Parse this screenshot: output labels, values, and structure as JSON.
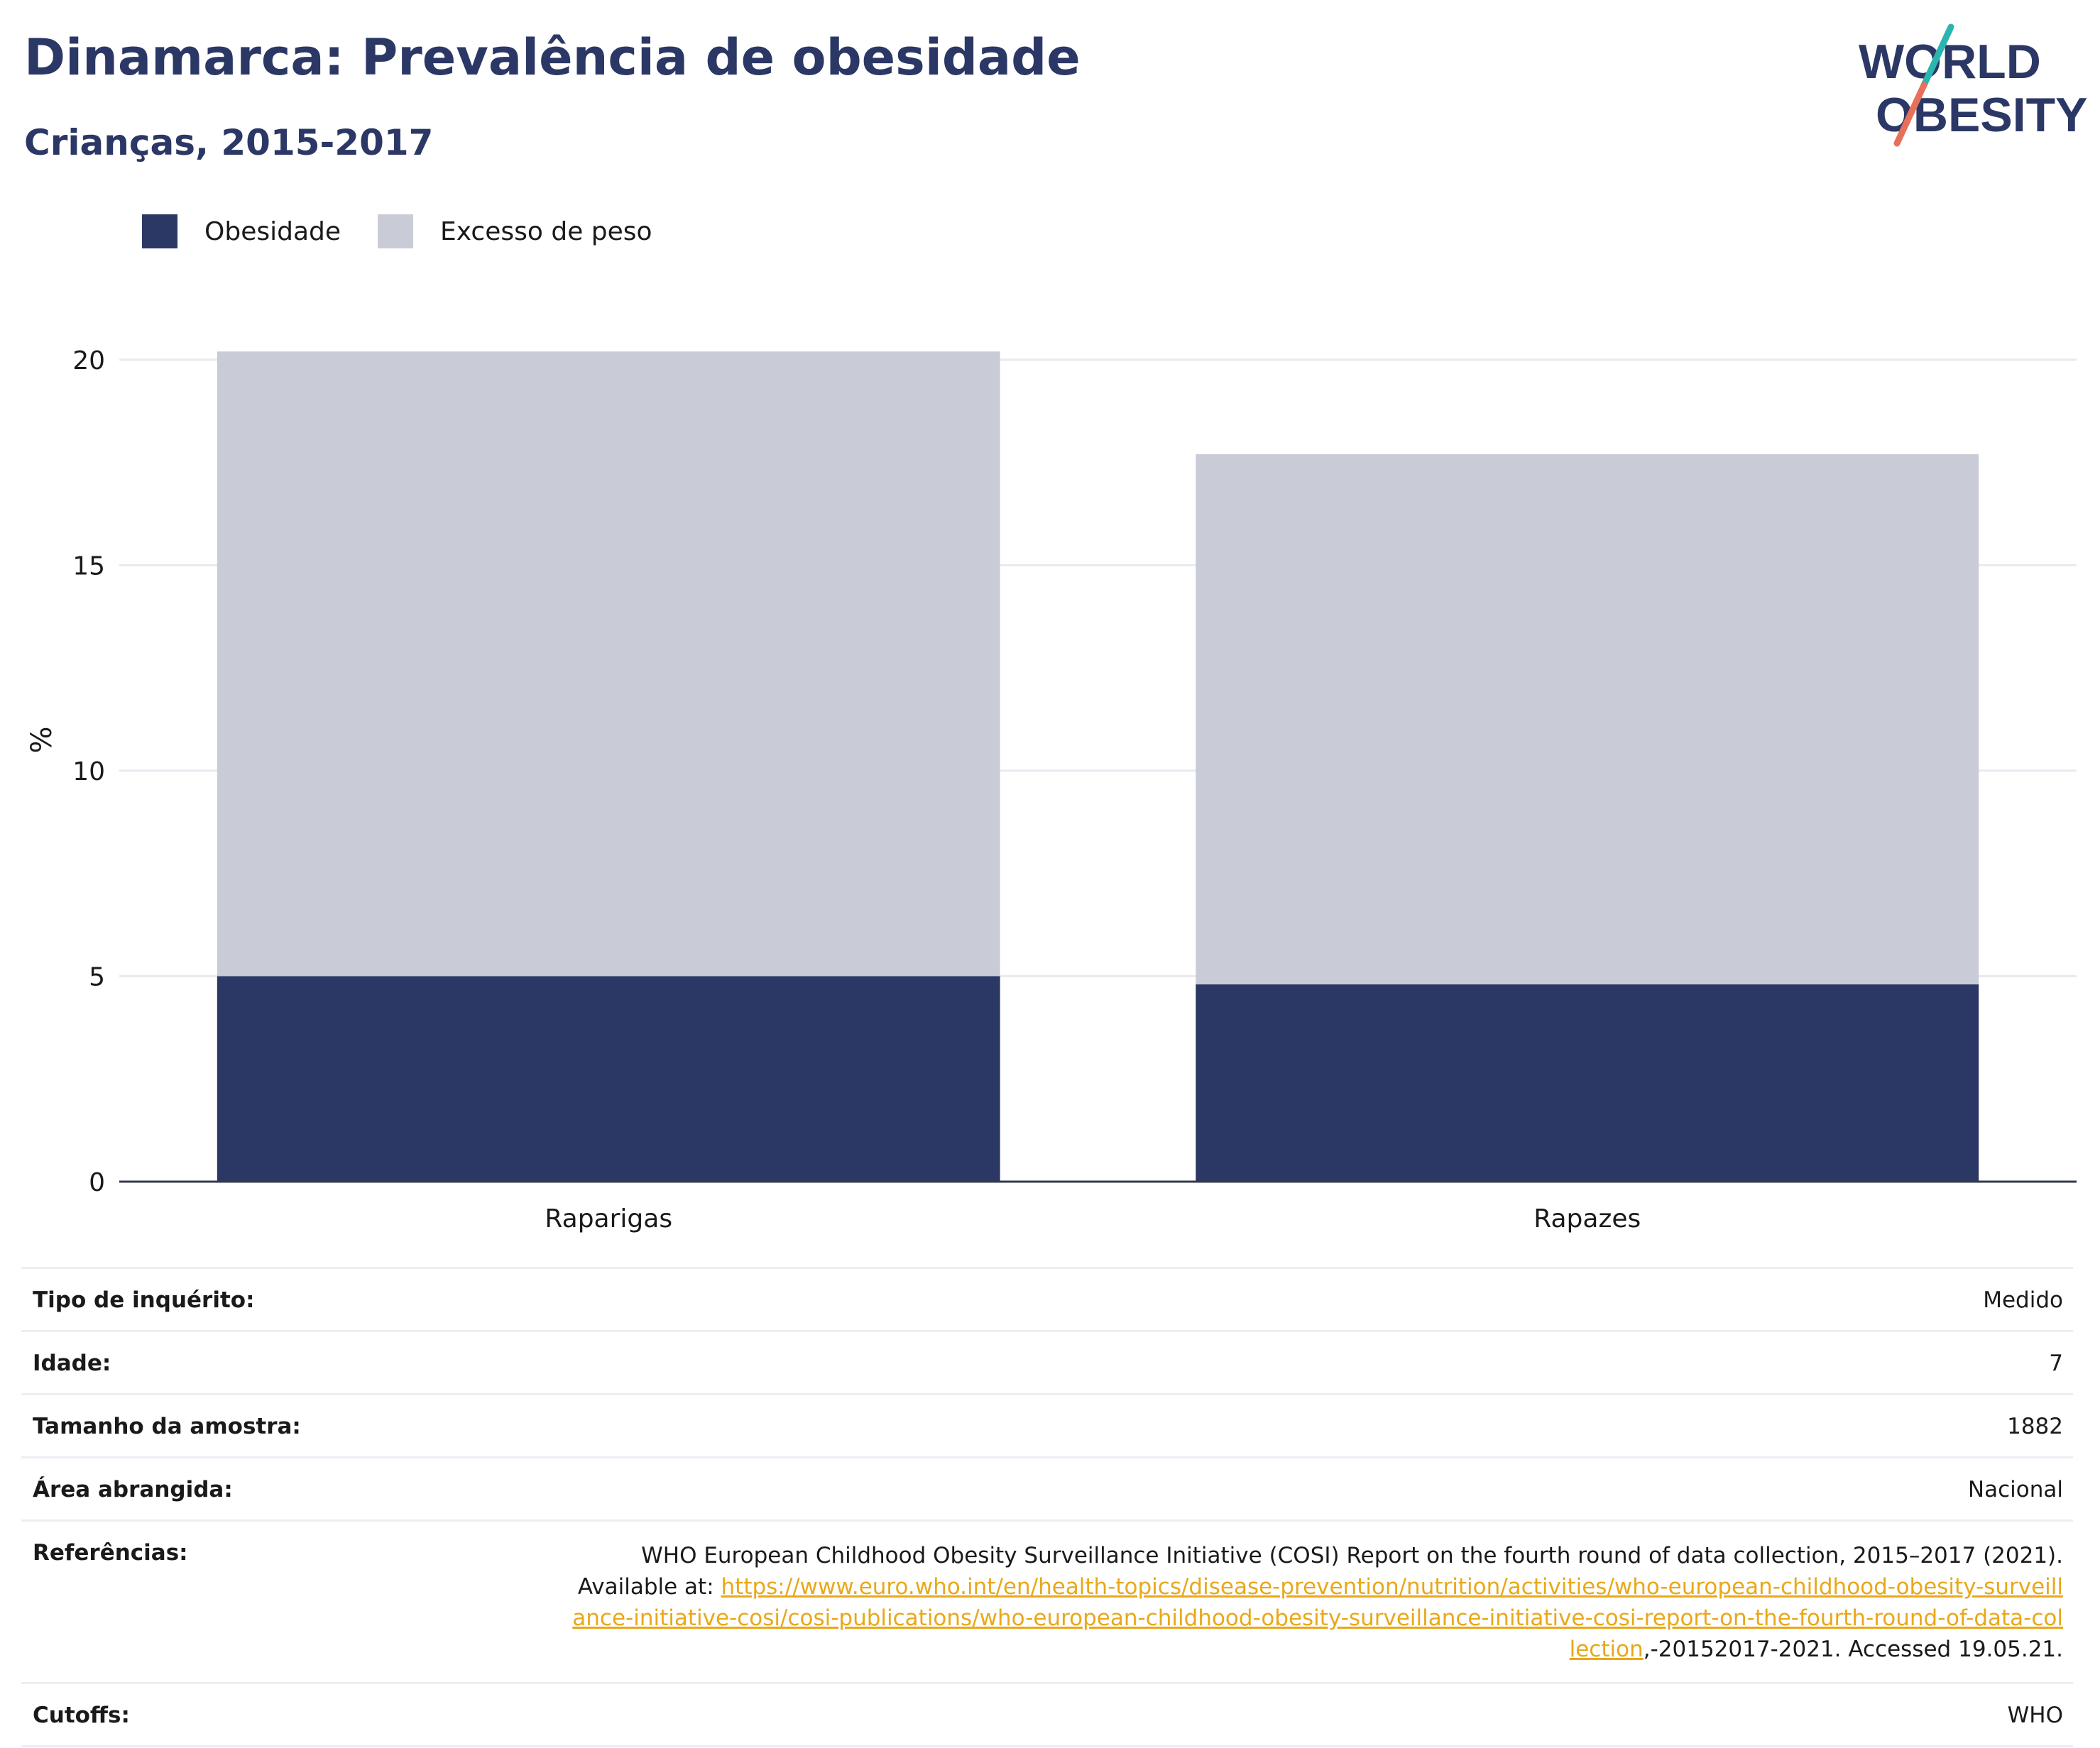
{
  "header": {
    "title": "Dinamarca: Prevalência de obesidade",
    "subtitle": "Crianças, 2015-2017"
  },
  "logo": {
    "line1": "WORLD",
    "line2": "OBESITY",
    "colors": {
      "text": "#2b3765",
      "slash_top": "#2bb5b0",
      "slash_bottom": "#e8705a"
    }
  },
  "legend": [
    {
      "label": "Obesidade",
      "color": "#2b3765"
    },
    {
      "label": "Excesso de peso",
      "color": "#c9ccd7"
    }
  ],
  "chart_data": {
    "type": "bar",
    "stacked": true,
    "categories": [
      "Raparigas",
      "Rapazes"
    ],
    "series": [
      {
        "name": "Obesidade",
        "color": "#2b3765",
        "values": [
          5.0,
          4.8
        ]
      },
      {
        "name": "Excesso de peso",
        "color": "#c9ccd7",
        "values": [
          15.2,
          12.9
        ]
      }
    ],
    "ylabel": "%",
    "ylim": [
      0,
      21.5
    ],
    "yticks": [
      0,
      5,
      10,
      15,
      20
    ],
    "grid": true,
    "legend_position": "top-left"
  },
  "info": {
    "rows": [
      {
        "label": "Tipo de inquérito:",
        "value": "Medido"
      },
      {
        "label": "Idade:",
        "value": "7"
      },
      {
        "label": "Tamanho da amostra:",
        "value": "1882"
      },
      {
        "label": "Área abrangida:",
        "value": "Nacional"
      }
    ],
    "references": {
      "label": "Referências:",
      "text_before": "WHO European Childhood Obesity Surveillance Initiative (COSI) Report on the fourth round of data collection, 2015–2017 (2021). Available at: ",
      "link": "https://www.euro.who.int/en/health-topics/disease-prevention/nutrition/activities/who-european-childhood-obesity-surveillance-initiative-cosi/cosi-publications/who-european-childhood-obesity-surveillance-initiative-cosi-report-on-the-fourth-round-of-data-collection",
      "text_after": ",-20152017-2021. Accessed 19.05.21."
    },
    "cutoffs": {
      "label": "Cutoffs:",
      "value": "WHO"
    }
  }
}
